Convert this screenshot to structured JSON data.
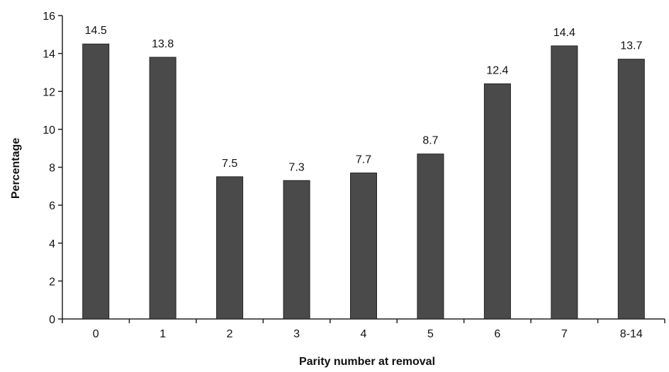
{
  "chart_data": {
    "type": "bar",
    "categories": [
      "0",
      "1",
      "2",
      "3",
      "4",
      "5",
      "6",
      "7",
      "8-14"
    ],
    "values": [
      14.5,
      13.8,
      7.5,
      7.3,
      7.7,
      8.7,
      12.4,
      14.4,
      13.7
    ],
    "data_labels": [
      "14.5",
      "13.8",
      "7.5",
      "7.3",
      "7.7",
      "8.7",
      "12.4",
      "14.4",
      "13.7"
    ],
    "title": "",
    "xlabel": "Parity number at removal",
    "ylabel": "Percentage",
    "ylim": [
      0,
      16
    ],
    "yticks": [
      "0",
      "2",
      "4",
      "6",
      "8",
      "10",
      "12",
      "14",
      "16"
    ],
    "grid": false,
    "legend": "none",
    "bar_color": "#4a4a4a"
  }
}
